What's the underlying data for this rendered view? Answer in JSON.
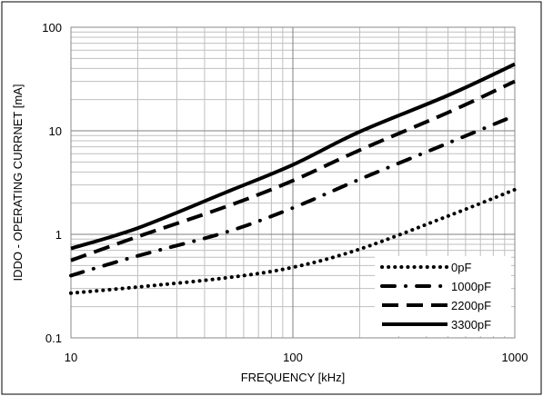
{
  "chart_data": {
    "type": "line",
    "xlabel": "FREQUENCY [kHz]",
    "ylabel": "IDDO - OPERATING CURRNET [mA]",
    "x_scale": "log",
    "y_scale": "log",
    "xlim": [
      10,
      1000
    ],
    "ylim": [
      0.1,
      100
    ],
    "x_ticks": [
      "10",
      "100",
      "1000"
    ],
    "y_ticks": [
      "0.1",
      "1",
      "10",
      "100"
    ],
    "grid": true,
    "legend_position": "bottom-right",
    "x": [
      10,
      20,
      50,
      100,
      200,
      500,
      1000
    ],
    "series": [
      {
        "name": "0pF",
        "style": "dotted",
        "values": [
          0.27,
          0.31,
          0.38,
          0.48,
          0.72,
          1.5,
          2.7
        ]
      },
      {
        "name": "1000pF",
        "style": "dash-dot",
        "values": [
          0.4,
          0.62,
          1.05,
          1.8,
          3.4,
          7.6,
          14
        ]
      },
      {
        "name": "2200pF",
        "style": "dashed",
        "values": [
          0.56,
          0.95,
          1.85,
          3.3,
          6.5,
          15,
          30
        ]
      },
      {
        "name": "3300pF",
        "style": "solid",
        "values": [
          0.73,
          1.15,
          2.55,
          4.7,
          9.8,
          22,
          44
        ]
      }
    ]
  }
}
